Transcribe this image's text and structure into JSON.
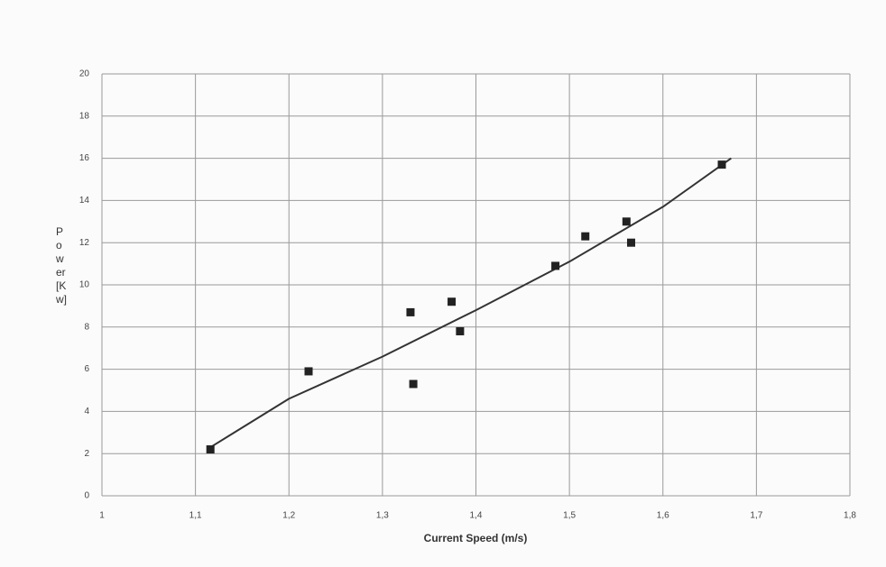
{
  "chart_data": {
    "type": "scatter",
    "xlabel": "Current Speed  (m/s)",
    "ylabel_lines": [
      "P",
      "o",
      "w",
      "er",
      "[K",
      "w]"
    ],
    "x": [
      1.116,
      1.221,
      1.33,
      1.333,
      1.374,
      1.383,
      1.485,
      1.517,
      1.561,
      1.566,
      1.663
    ],
    "values": [
      2.2,
      5.9,
      8.7,
      5.3,
      9.2,
      7.8,
      10.9,
      12.3,
      13.0,
      12.0,
      15.7
    ],
    "color": "#222222",
    "trendline": {
      "x": [
        1.116,
        1.2,
        1.3,
        1.4,
        1.5,
        1.6,
        1.673
      ],
      "values": [
        2.3,
        4.6,
        6.6,
        8.8,
        11.1,
        13.7,
        16.0
      ],
      "color": "#333333"
    },
    "xlim": [
      1,
      1.8
    ],
    "xticks": [
      1,
      {
        "value": 1.1,
        "label": "1,1"
      },
      {
        "value": 1.2,
        "label": "1,2"
      },
      {
        "value": 1.3,
        "label": "1,3"
      },
      {
        "value": 1.4,
        "label": "1,4"
      },
      {
        "value": 1.5,
        "label": "1,5"
      },
      {
        "value": 1.6,
        "label": "1,6"
      },
      {
        "value": 1.7,
        "label": "1,7"
      },
      {
        "value": 1.8,
        "label": "1,8"
      }
    ],
    "ylim": [
      0,
      20
    ],
    "yticks": [
      0,
      2,
      4,
      6,
      8,
      10,
      12,
      14,
      16,
      18,
      20
    ],
    "grid": true
  }
}
